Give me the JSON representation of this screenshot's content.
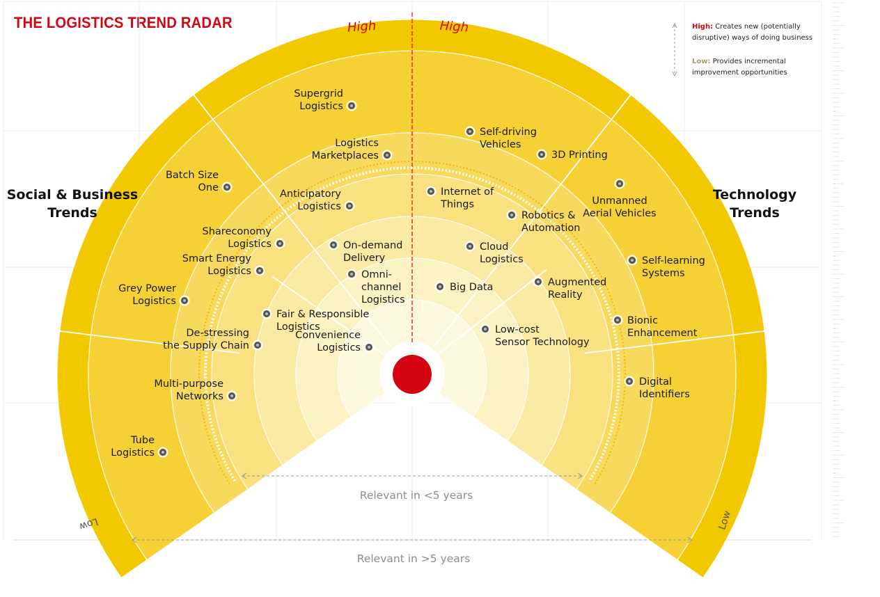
{
  "title": "THE LOGISTICS TREND RADAR",
  "legend": {
    "high_key": "High:",
    "high_text": "Creates new (potentially disruptive) ways of doing business",
    "low_key": "Low:",
    "low_text": "Provides incremental improvement opportunities"
  },
  "axis": {
    "high_left": "High",
    "high_right": "High",
    "low_left": "Low",
    "low_right": "Low",
    "inner_timeframe": "Relevant in <5 years",
    "outer_timeframe": "Relevant in >5 years"
  },
  "sections": {
    "left": [
      "Social & Business",
      "Trends"
    ],
    "right": [
      "Technology",
      "Trends"
    ]
  },
  "colors": {
    "ring1": "#fcf3c5",
    "ring2": "#fbeaa4",
    "ring3": "#f9e180",
    "ring4": "#f7d95e",
    "ring5": "#f5d136",
    "ring6": "#f2c900",
    "accent": "#d40511",
    "dot": "#555555"
  },
  "trends": {
    "social": [
      {
        "lines": [
          "Supergrid",
          "Logistics"
        ]
      },
      {
        "lines": [
          "Logistics",
          "Marketplaces"
        ]
      },
      {
        "lines": [
          "Batch Size",
          "One"
        ]
      },
      {
        "lines": [
          "Anticipatory",
          "Logistics"
        ]
      },
      {
        "lines": [
          "Shareconomy",
          "Logistics"
        ]
      },
      {
        "lines": [
          "On-demand",
          "Delivery"
        ]
      },
      {
        "lines": [
          "Smart Energy",
          "Logistics"
        ]
      },
      {
        "lines": [
          "Omni-",
          "channel",
          "Logistics"
        ]
      },
      {
        "lines": [
          "Grey Power",
          "Logistics"
        ]
      },
      {
        "lines": [
          "Fair & Responsible",
          "Logistics"
        ]
      },
      {
        "lines": [
          "De-stressing",
          "the Supply Chain"
        ]
      },
      {
        "lines": [
          "Convenience",
          "Logistics"
        ]
      },
      {
        "lines": [
          "Multi-purpose",
          "Networks"
        ]
      },
      {
        "lines": [
          "Tube",
          "Logistics"
        ]
      }
    ],
    "technology": [
      {
        "lines": [
          "Self-driving",
          "Vehicles"
        ]
      },
      {
        "lines": [
          "3D Printing"
        ]
      },
      {
        "lines": [
          "Internet of",
          "Things"
        ]
      },
      {
        "lines": [
          "Unmanned",
          "Aerial Vehicles"
        ]
      },
      {
        "lines": [
          "Robotics &",
          "Automation"
        ]
      },
      {
        "lines": [
          "Cloud",
          "Logistics"
        ]
      },
      {
        "lines": [
          "Self-learning",
          "Systems"
        ]
      },
      {
        "lines": [
          "Big Data"
        ]
      },
      {
        "lines": [
          "Augmented",
          "Reality"
        ]
      },
      {
        "lines": [
          "Bionic",
          "Enhancement"
        ]
      },
      {
        "lines": [
          "Low-cost",
          "Sensor Technology"
        ]
      },
      {
        "lines": [
          "Digital",
          "Identifiers"
        ]
      }
    ]
  }
}
